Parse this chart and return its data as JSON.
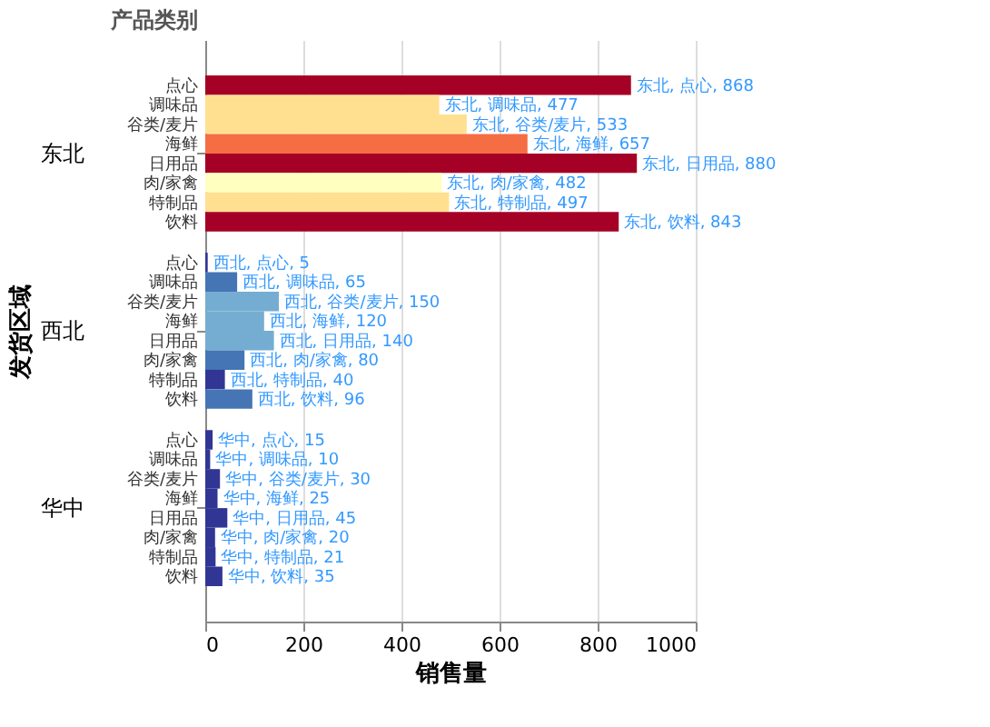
{
  "chart_data": {
    "type": "bar",
    "orientation": "horizontal",
    "xlabel": "销售量",
    "ylabel": "发货区域",
    "annotations": [
      "产品类别"
    ],
    "categories": [
      "东北",
      "西北",
      "华中"
    ],
    "xlim": [
      0,
      1000
    ],
    "xticks": [
      0,
      200,
      400,
      600,
      800,
      1000
    ],
    "grid": "x",
    "series": [
      {
        "name": "点心",
        "values": [
          868,
          5,
          15
        ],
        "colors": [
          "#a50026",
          "#313695",
          "#313695"
        ],
        "value_labels": [
          "东北, 点心, 868",
          "西北, 点心, 5",
          "华中, 点心, 15"
        ]
      },
      {
        "name": "调味品",
        "values": [
          477,
          65,
          10
        ],
        "colors": [
          "#fee090",
          "#4575b4",
          "#313695"
        ],
        "value_labels": [
          "东北, 调味品, 477",
          "西北, 调味品, 65",
          "华中, 调味品, 10"
        ]
      },
      {
        "name": "谷类/麦片",
        "values": [
          533,
          150,
          30
        ],
        "colors": [
          "#fee090",
          "#74add1",
          "#313695"
        ],
        "value_labels": [
          "东北, 谷类/麦片, 533",
          "西北, 谷类/麦片, 150",
          "华中, 谷类/麦片, 30"
        ]
      },
      {
        "name": "海鲜",
        "values": [
          657,
          120,
          25
        ],
        "colors": [
          "#f46d43",
          "#74add1",
          "#313695"
        ],
        "value_labels": [
          "东北, 海鲜, 657",
          "西北, 海鲜, 120",
          "华中, 海鲜, 25"
        ]
      },
      {
        "name": "日用品",
        "values": [
          880,
          140,
          45
        ],
        "colors": [
          "#a50026",
          "#74add1",
          "#313695"
        ],
        "value_labels": [
          "东北, 日用品, 880",
          "西北, 日用品, 140",
          "华中, 日用品, 45"
        ]
      },
      {
        "name": "肉/家禽",
        "values": [
          482,
          80,
          20
        ],
        "colors": [
          "#ffffbf",
          "#4575b4",
          "#313695"
        ],
        "value_labels": [
          "东北, 肉/家禽, 482",
          "西北, 肉/家禽, 80",
          "华中, 肉/家禽, 20"
        ]
      },
      {
        "name": "特制品",
        "values": [
          497,
          40,
          21
        ],
        "colors": [
          "#fee090",
          "#313695",
          "#313695"
        ],
        "value_labels": [
          "东北, 特制品, 497",
          "西北, 特制品, 40",
          "华中, 特制品, 21"
        ]
      },
      {
        "name": "饮料",
        "values": [
          843,
          96,
          35
        ],
        "colors": [
          "#a50026",
          "#4575b4",
          "#313695"
        ],
        "value_labels": [
          "东北, 饮料, 843",
          "西北, 饮料, 96",
          "华中, 饮料, 35"
        ]
      }
    ]
  }
}
